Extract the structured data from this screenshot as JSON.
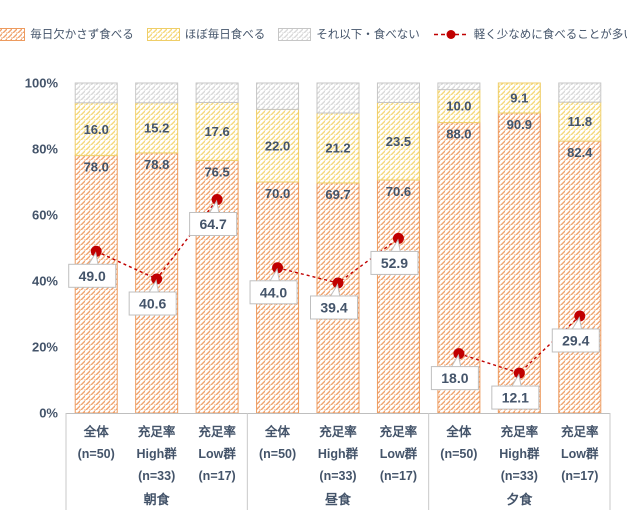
{
  "legend": [
    {
      "label": "毎日欠かさず食べる",
      "type": "hatch",
      "color": "#ED9B5F"
    },
    {
      "label": "ほぼ毎日食べる",
      "type": "hatch",
      "color": "#EFCE68"
    },
    {
      "label": "それ以下・食べない",
      "type": "hatch",
      "color": "#C6C6C6"
    },
    {
      "label": "軽く少なめに食べることが多い",
      "type": "line",
      "color": "#C00000"
    }
  ],
  "colors": {
    "text": "#44546A",
    "axis_line": "#BFBFBF",
    "separator": "#C9C9C9",
    "callout_border": "#BFBFBF",
    "callout_fill": "#FFFFFF",
    "background": "#FFFFFF"
  },
  "chart_data": {
    "type": "bar",
    "subtype": "stacked-percent-with-line-markers",
    "ylim": [
      0,
      100
    ],
    "y_axis": {
      "ticks": [
        "0%",
        "20%",
        "40%",
        "60%",
        "80%",
        "100%"
      ],
      "tick_values": [
        0,
        20,
        40,
        60,
        80,
        100
      ]
    },
    "grid": false,
    "legend_position": "top",
    "groups": [
      {
        "label": "朝食",
        "categories": [
          {
            "lines": [
              "全体",
              "(n=50)"
            ]
          },
          {
            "lines": [
              "充足率",
              "High群",
              "(n=33)"
            ]
          },
          {
            "lines": [
              "充足率",
              "Low群",
              "(n=17)"
            ]
          }
        ]
      },
      {
        "label": "昼食",
        "categories": [
          {
            "lines": [
              "全体",
              "(n=50)"
            ]
          },
          {
            "lines": [
              "充足率",
              "High群",
              "(n=33)"
            ]
          },
          {
            "lines": [
              "充足率",
              "Low群",
              "(n=17)"
            ]
          }
        ]
      },
      {
        "label": "夕食",
        "categories": [
          {
            "lines": [
              "全体",
              "(n=50)"
            ]
          },
          {
            "lines": [
              "充足率",
              "High群",
              "(n=33)"
            ]
          },
          {
            "lines": [
              "充足率",
              "Low群",
              "(n=17)"
            ]
          }
        ]
      }
    ],
    "series": [
      {
        "name": "毎日欠かさず食べる",
        "values": [
          78.0,
          78.8,
          76.5,
          70.0,
          69.7,
          70.6,
          88.0,
          90.9,
          82.4
        ],
        "color": "#ED9B5F",
        "stripe": "#F0A26C",
        "pattern": "diagonal-hatch",
        "label_position": "inside-top"
      },
      {
        "name": "ほぼ毎日食べる",
        "values": [
          16.0,
          15.2,
          17.6,
          22.0,
          21.2,
          23.5,
          10.0,
          9.1,
          11.8
        ],
        "color": "#EFCE68",
        "stripe": "#F5D878",
        "pattern": "diagonal-hatch",
        "label_position": "center"
      },
      {
        "name": "それ以下・食べない",
        "values": [
          6.0,
          6.0,
          5.9,
          8.0,
          9.1,
          5.9,
          2.0,
          0.0,
          5.8
        ],
        "color": "#C6C6C6",
        "stripe": "#D9D9D9",
        "pattern": "diagonal-hatch",
        "label_position": "none"
      }
    ],
    "line_series": {
      "name": "軽く少なめに食べることが多い",
      "values": [
        49.0,
        40.6,
        64.7,
        44.0,
        39.4,
        52.9,
        18.0,
        12.1,
        29.4
      ],
      "color": "#C00000",
      "style": "dashed",
      "marker": "circle",
      "labels": "callout-below"
    }
  }
}
